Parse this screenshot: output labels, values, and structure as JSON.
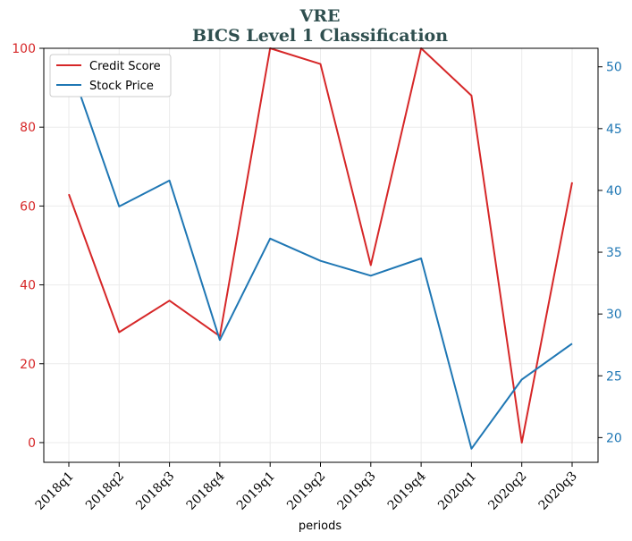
{
  "chart_data": {
    "type": "line",
    "title": "VRE",
    "subtitle": "BICS Level 1 Classification",
    "xlabel": "periods",
    "categories": [
      "2018q1",
      "2018q2",
      "2018q3",
      "2018q4",
      "2019q1",
      "2019q2",
      "2019q3",
      "2019q4",
      "2020q1",
      "2020q2",
      "2020q3"
    ],
    "series": [
      {
        "name": "Credit Score",
        "axis": "left",
        "color": "#d62728",
        "values": [
          63,
          28,
          36,
          27,
          100,
          96,
          45,
          100,
          88,
          0,
          66
        ]
      },
      {
        "name": "Stock Price",
        "axis": "right",
        "color": "#1f77b4",
        "values": [
          50.4,
          38.7,
          40.8,
          27.9,
          36.1,
          34.3,
          33.1,
          34.5,
          19.1,
          24.7,
          27.6
        ]
      }
    ],
    "y_left": {
      "ylim": [
        -5,
        100
      ],
      "ticks": [
        "0",
        "20",
        "40",
        "60",
        "80",
        "100"
      ],
      "color": "#d62728"
    },
    "y_right": {
      "ylim": [
        18,
        51.5
      ],
      "ticks": [
        "20",
        "25",
        "30",
        "35",
        "40",
        "45",
        "50"
      ],
      "color": "#1f77b4"
    },
    "grid": true,
    "legend_position": "top-left",
    "title_color": "#2f4f4f"
  }
}
